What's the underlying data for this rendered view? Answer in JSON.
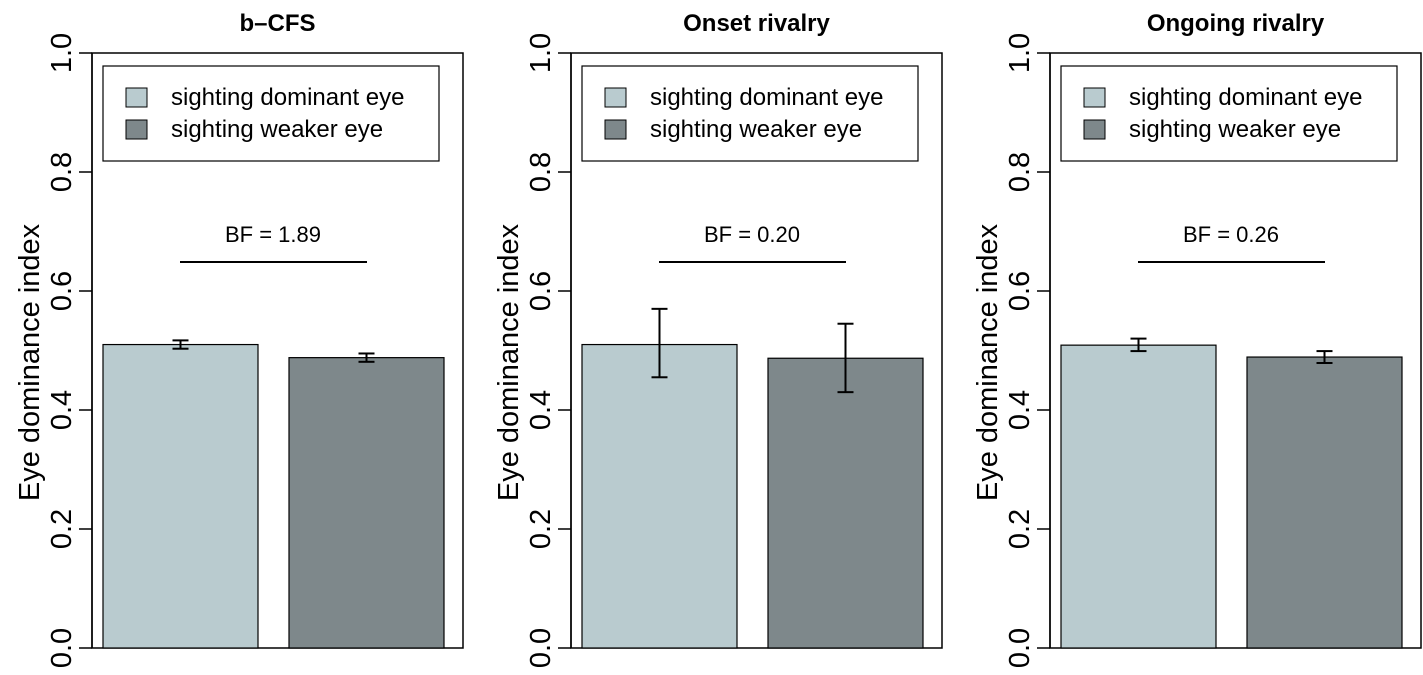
{
  "chart_data": [
    {
      "type": "bar",
      "title": "b–CFS",
      "ylabel": "Eye dominance index",
      "xlabel": "",
      "ylim": [
        0,
        1
      ],
      "yticks": [
        "0.0",
        "0.2",
        "0.4",
        "0.6",
        "0.8",
        "1.0"
      ],
      "categories": [
        "sighting dominant eye",
        "sighting weaker eye"
      ],
      "values": [
        0.51,
        0.488
      ],
      "error_low": [
        0.503,
        0.481
      ],
      "error_high": [
        0.517,
        0.495
      ],
      "colors": [
        "#b9cbcf",
        "#7e888b"
      ],
      "legend": {
        "entries": [
          "sighting dominant eye",
          "sighting weaker eye"
        ],
        "placement": "top"
      },
      "annotation": "BF = 1.89"
    },
    {
      "type": "bar",
      "title": "Onset rivalry",
      "ylabel": "Eye dominance index",
      "xlabel": "",
      "ylim": [
        0,
        1
      ],
      "yticks": [
        "0.0",
        "0.2",
        "0.4",
        "0.6",
        "0.8",
        "1.0"
      ],
      "categories": [
        "sighting dominant eye",
        "sighting weaker eye"
      ],
      "values": [
        0.51,
        0.487
      ],
      "error_low": [
        0.455,
        0.43
      ],
      "error_high": [
        0.57,
        0.545
      ],
      "colors": [
        "#b9cbcf",
        "#7e888b"
      ],
      "legend": {
        "entries": [
          "sighting dominant eye",
          "sighting weaker eye"
        ],
        "placement": "top"
      },
      "annotation": "BF = 0.20"
    },
    {
      "type": "bar",
      "title": "Ongoing rivalry",
      "ylabel": "Eye dominance index",
      "xlabel": "",
      "ylim": [
        0,
        1
      ],
      "yticks": [
        "0.0",
        "0.2",
        "0.4",
        "0.6",
        "0.8",
        "1.0"
      ],
      "categories": [
        "sighting dominant eye",
        "sighting weaker eye"
      ],
      "values": [
        0.509,
        0.489
      ],
      "error_low": [
        0.499,
        0.479
      ],
      "error_high": [
        0.52,
        0.499
      ],
      "colors": [
        "#b9cbcf",
        "#7e888b"
      ],
      "legend": {
        "entries": [
          "sighting dominant eye",
          "sighting weaker eye"
        ],
        "placement": "top"
      },
      "annotation": "BF = 0.26"
    }
  ]
}
